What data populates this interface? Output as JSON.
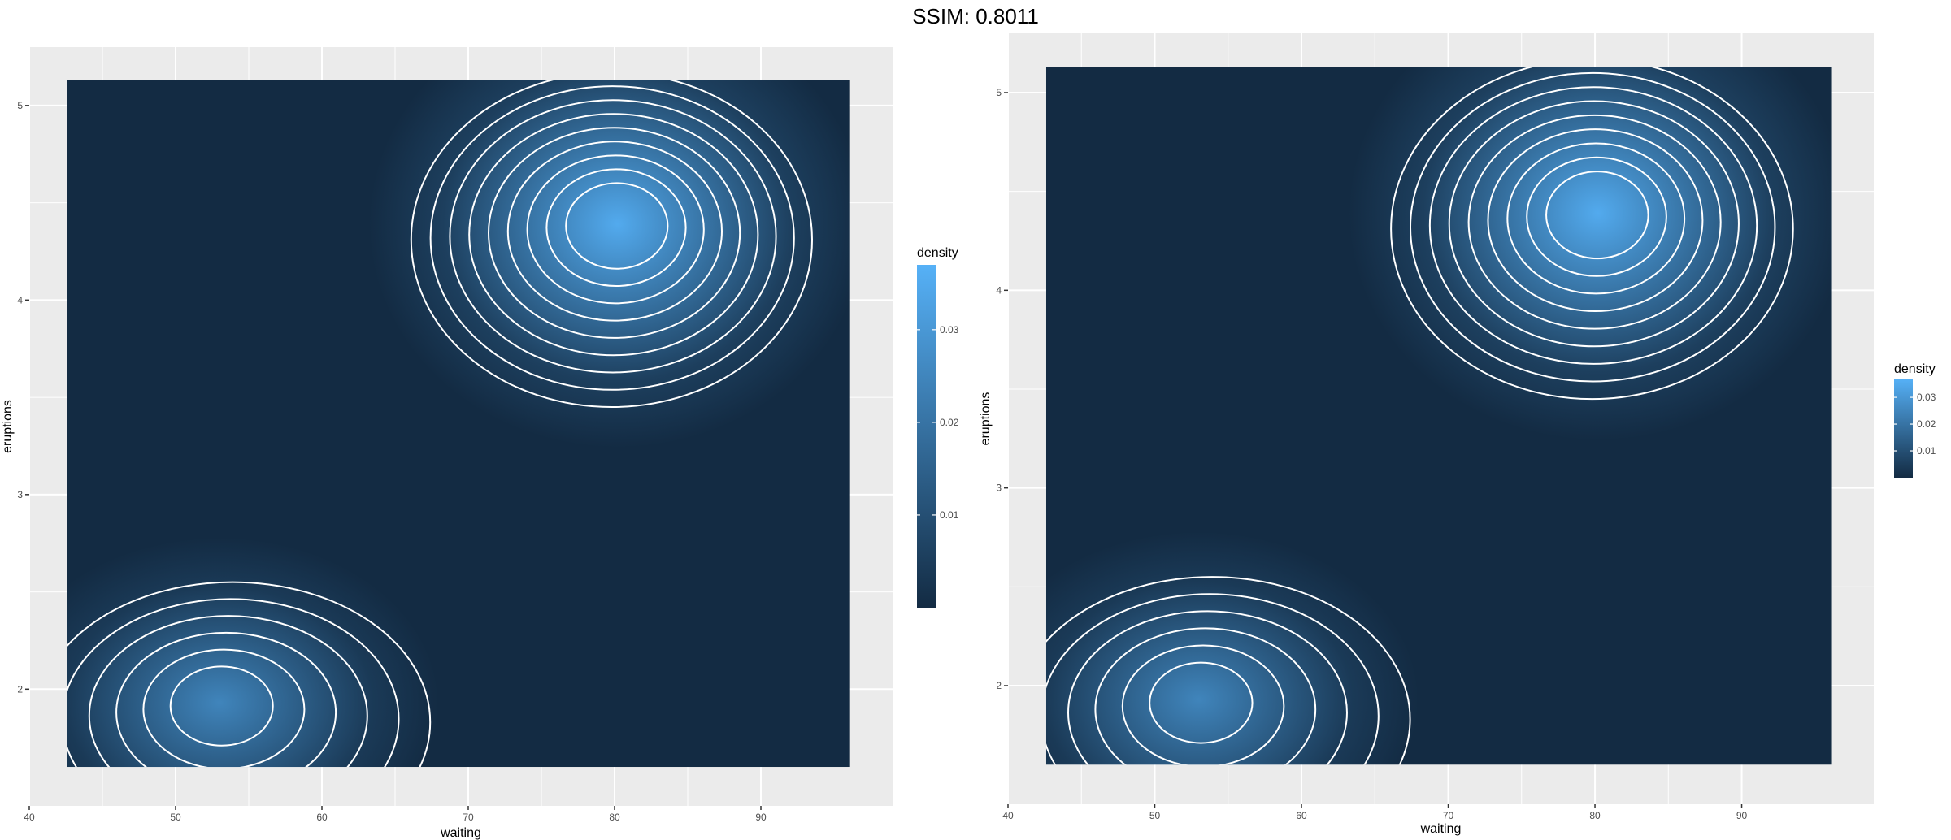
{
  "figure_title": "SSIM: 0.8011",
  "colors": {
    "panel_bg": "#ebebeb",
    "grid": "#ffffff",
    "density_low": "#132b43",
    "density_high": "#56b1f7",
    "contour": "#ffffff"
  },
  "chart_data": [
    {
      "type": "heatmap",
      "xlabel": "waiting",
      "ylabel": "eruptions",
      "xlim": [
        40,
        99
      ],
      "ylim": [
        1.4,
        5.3
      ],
      "x_ticks": [
        40,
        50,
        60,
        70,
        80,
        90
      ],
      "y_ticks": [
        2,
        3,
        4,
        5
      ],
      "tile_extent": {
        "x": [
          42.6,
          96.1
        ],
        "y": [
          1.6,
          5.13
        ]
      },
      "modes": [
        {
          "name": "",
          "x": 80.2,
          "y": 4.39,
          "peak_density": 0.037
        },
        {
          "name": "",
          "x": 53.0,
          "y": 1.93,
          "peak_density": 0.026
        }
      ],
      "legend": {
        "title": "density",
        "ticks": [
          0.01,
          0.02,
          0.03
        ],
        "range": [
          0.0,
          0.037
        ],
        "placement": "right",
        "size": "large"
      },
      "contour_levels": [
        0.002,
        0.006,
        0.01,
        0.014,
        0.018,
        0.022,
        0.026,
        0.03,
        0.034
      ],
      "grid": true
    },
    {
      "type": "heatmap",
      "xlabel": "waiting",
      "ylabel": "eruptions",
      "xlim": [
        40,
        99
      ],
      "ylim": [
        1.4,
        5.3
      ],
      "x_ticks": [
        40,
        50,
        60,
        70,
        80,
        90
      ],
      "y_ticks": [
        2,
        3,
        4,
        5
      ],
      "tile_extent": {
        "x": [
          42.6,
          96.1
        ],
        "y": [
          1.6,
          5.13
        ]
      },
      "modes": [
        {
          "name": "",
          "x": 80.2,
          "y": 4.39,
          "peak_density": 0.037
        },
        {
          "name": "",
          "x": 53.0,
          "y": 1.93,
          "peak_density": 0.026
        }
      ],
      "legend": {
        "title": "density",
        "ticks": [
          0.01,
          0.02,
          0.03
        ],
        "range": [
          0.0,
          0.037
        ],
        "placement": "right",
        "size": "small"
      },
      "contour_levels": [
        0.002,
        0.006,
        0.01,
        0.014,
        0.018,
        0.022,
        0.026,
        0.03,
        0.034
      ],
      "grid": true
    }
  ]
}
